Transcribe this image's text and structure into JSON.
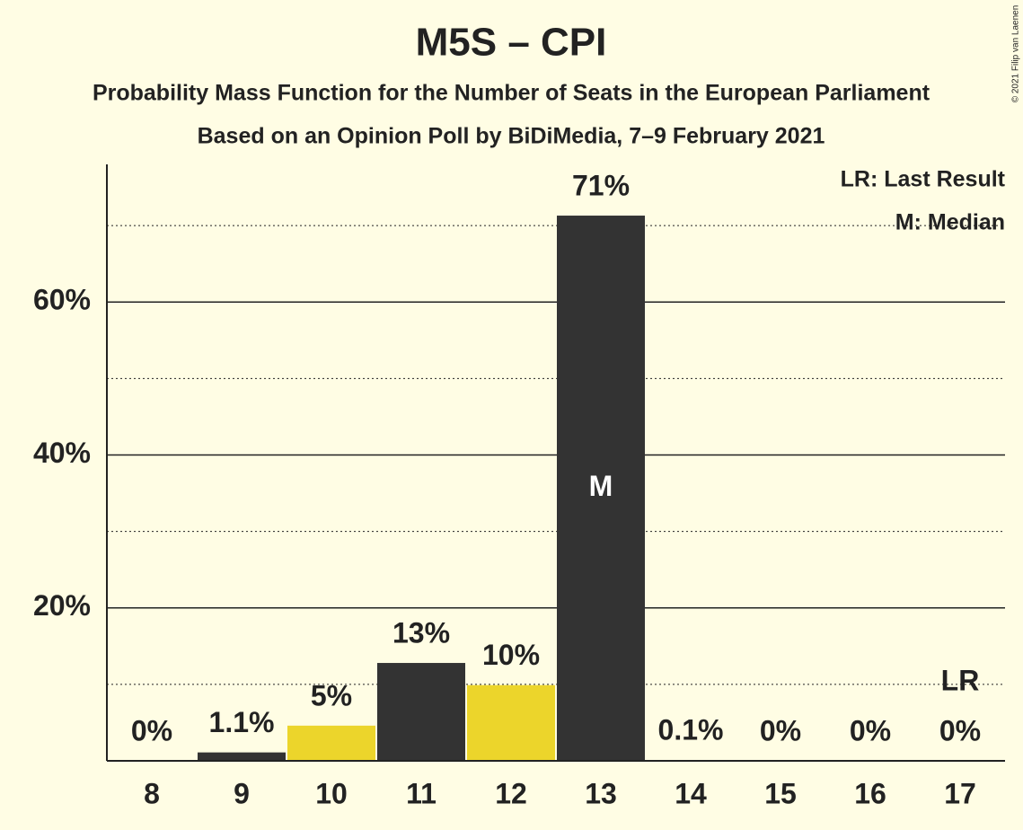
{
  "chart_data": {
    "type": "bar",
    "title": "M5S – CPI",
    "subtitle": [
      "Probability Mass Function for the Number of Seats in the European Parliament",
      "Based on an Opinion Poll by BiDiMedia, 7–9 February 2021"
    ],
    "categories": [
      "8",
      "9",
      "10",
      "11",
      "12",
      "13",
      "14",
      "15",
      "16",
      "17"
    ],
    "values": [
      0,
      1.1,
      4.6,
      12.8,
      9.9,
      71.3,
      0.1,
      0,
      0,
      0
    ],
    "value_labels": [
      "0%",
      "1.1%",
      "5%",
      "13%",
      "10%",
      "71%",
      "0.1%",
      "0%",
      "0%",
      "0%"
    ],
    "colors": [
      "#333333",
      "#333333",
      "#ecd52b",
      "#333333",
      "#ecd52b",
      "#333333",
      "#333333",
      "#333333",
      "#333333",
      "#333333"
    ],
    "ylim": [
      0,
      78
    ],
    "yticks": [
      {
        "value": 20,
        "label": "20%"
      },
      {
        "value": 40,
        "label": "40%"
      },
      {
        "value": 60,
        "label": "60%"
      }
    ],
    "minor_yticks": [
      10,
      30,
      50,
      70
    ],
    "grid": true,
    "markers": [
      {
        "label": "M",
        "category": "13",
        "position": "inside"
      },
      {
        "label": "LR",
        "category": "17",
        "position": "above"
      }
    ],
    "legend": [
      "LR: Last Result",
      "M: Median"
    ],
    "legend_corner": "top-right",
    "copyright": "© 2021 Filip van Laenen"
  }
}
